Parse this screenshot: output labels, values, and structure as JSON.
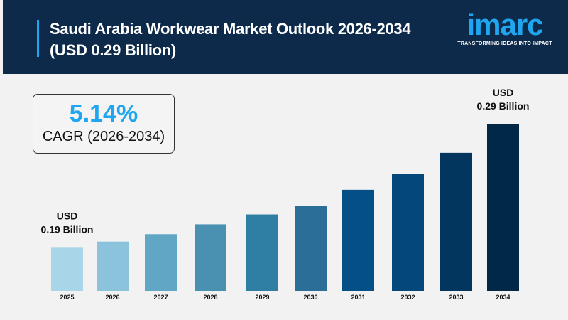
{
  "header": {
    "title": "Saudi Arabia Workwear Market Outlook 2026-2034 (USD 0.29 Billion)"
  },
  "logo": {
    "word": "imarc",
    "tagline": "TRANSFORMING IDEAS INTO IMPACT"
  },
  "cagr": {
    "value": "5.14%",
    "label": "CAGR (2026-2034)"
  },
  "colors": {
    "header_bg": "#0d2a4a",
    "accent": "#1ea7f0"
  },
  "chart_data": {
    "type": "bar",
    "categories": [
      "2025",
      "2026",
      "2027",
      "2028",
      "2029",
      "2030",
      "2031",
      "2032",
      "2033",
      "2034"
    ],
    "values": [
      0.19,
      0.195,
      0.201,
      0.209,
      0.217,
      0.224,
      0.237,
      0.25,
      0.267,
      0.29
    ],
    "unit": "USD Billion",
    "ylim": [
      0.155,
      0.29
    ],
    "grid": false,
    "colors": [
      "#a8d5e8",
      "#8cc3dc",
      "#62a6c5",
      "#4a90b0",
      "#2e7fa3",
      "#2b6e97",
      "#054f87",
      "#04477a",
      "#03365f",
      "#022848"
    ],
    "annotations": [
      {
        "category": "2025",
        "line1": "USD",
        "line2": "0.19 Billion"
      },
      {
        "category": "2034",
        "line1": "USD",
        "line2": "0.29 Billion"
      }
    ]
  }
}
